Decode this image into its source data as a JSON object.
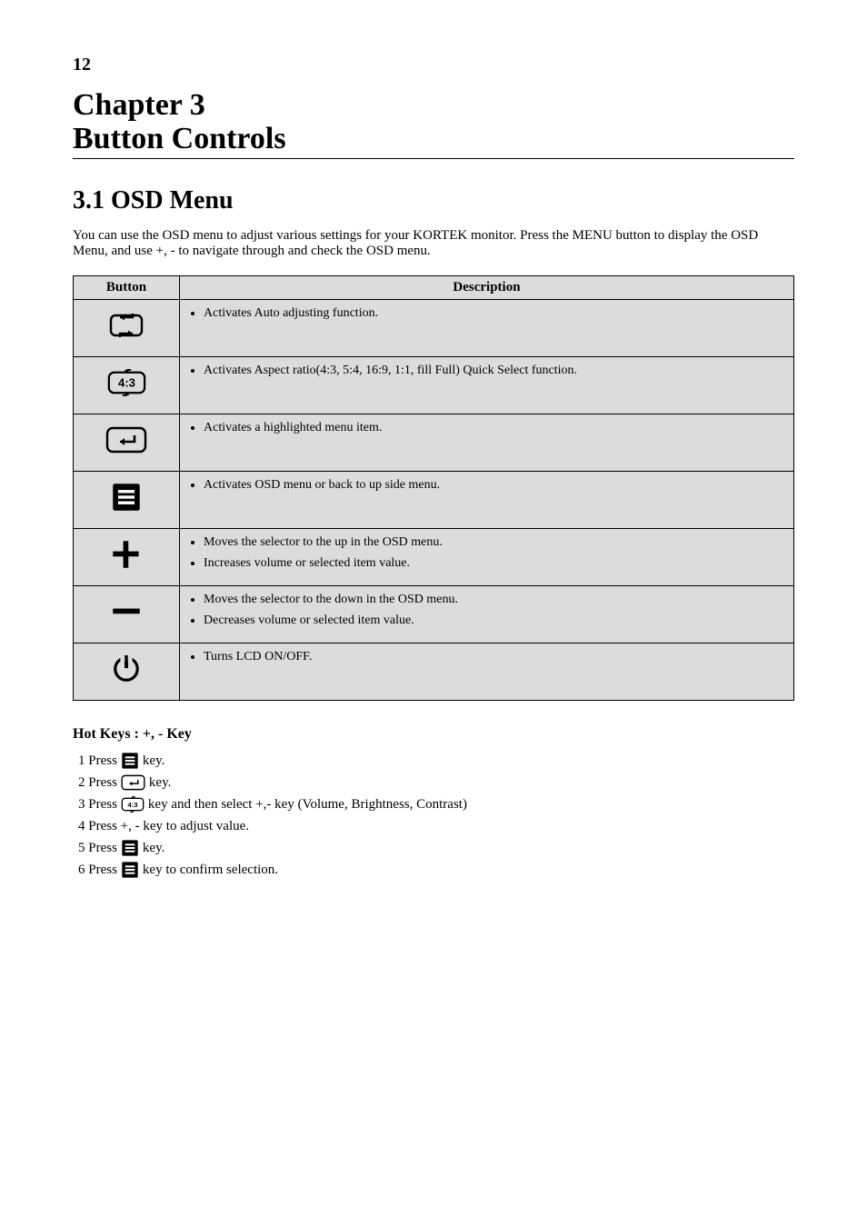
{
  "page_number": "12",
  "chapter_label": "Chapter 3",
  "chapter_title": "Button Controls",
  "section_title": "3.1 OSD Menu",
  "intro_text": "You can use the OSD menu to adjust various settings for your KORTEK monitor. Press the MENU button to display the OSD Menu, and use +, - to navigate through and check the OSD menu.",
  "table": {
    "headers": [
      "Button",
      "Description"
    ],
    "rows": [
      {
        "icon": "auto-adjust",
        "desc": [
          "Activates Auto adjusting function."
        ]
      },
      {
        "icon": "aspect",
        "desc": [
          "Activates Aspect ratio(4:3, 5:4, 16:9, 1:1, fill Full) Quick Select function."
        ]
      },
      {
        "icon": "enter",
        "desc": [
          "Activates a highlighted menu item."
        ]
      },
      {
        "icon": "menu",
        "desc": [
          "Activates OSD menu or back to up side menu."
        ]
      },
      {
        "icon": "plus",
        "desc": [
          "Moves the selector to the up in the OSD menu.",
          "Increases volume or selected item value."
        ]
      },
      {
        "icon": "minus",
        "desc": [
          "Moves the selector to the down in the OSD menu.",
          "Decreases volume or selected item value."
        ]
      },
      {
        "icon": "power",
        "desc": [
          "Turns LCD ON/OFF."
        ]
      }
    ]
  },
  "hotkeys_title": "Hot Keys : +, - Key",
  "hotkeys": [
    {
      "prefix": "1 Press ",
      "icon": "menu",
      "suffix": " key."
    },
    {
      "prefix": "2 Press ",
      "icon": "enter",
      "suffix": " key."
    },
    {
      "prefix": "3 Press ",
      "icon": "aspect",
      "suffix": " key and then select +,- key (Volume, Brightness, Contrast)"
    },
    {
      "prefix": "4 Press +, - key to adjust value.",
      "icon": null,
      "suffix": ""
    },
    {
      "prefix": "5 Press ",
      "icon": "menu",
      "suffix": " key."
    },
    {
      "prefix": "6 Press ",
      "icon": "menu",
      "suffix": " key to confirm selection."
    }
  ],
  "icons": {
    "auto-adjust": "auto-adjust-icon",
    "aspect": "aspect-icon",
    "enter": "enter-icon",
    "menu": "menu-icon",
    "plus": "plus-icon",
    "minus": "minus-icon",
    "power": "power-icon"
  },
  "colors": {
    "cell_bg": "#dcdcdc",
    "border": "#000000",
    "text": "#000000",
    "page_bg": "#ffffff"
  }
}
